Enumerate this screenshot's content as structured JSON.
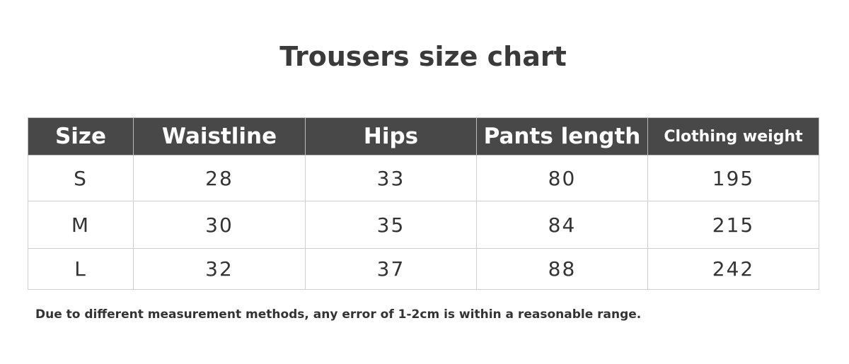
{
  "title": "Trousers size chart",
  "table": {
    "headers": [
      "Size",
      "Waistline",
      "Hips",
      "Pants length",
      "Clothing weight"
    ],
    "rows": [
      [
        "S",
        "28",
        "33",
        "80",
        "195"
      ],
      [
        "M",
        "30",
        "35",
        "84",
        "215"
      ],
      [
        "L",
        "32",
        "37",
        "88",
        "242"
      ]
    ]
  },
  "note": "Due to different measurement methods, any error of 1-2cm is within a reasonable range.",
  "colors": {
    "header_bg": "#484848",
    "header_text": "#ffffff",
    "border": "#cfcfcf",
    "text": "#333333"
  }
}
